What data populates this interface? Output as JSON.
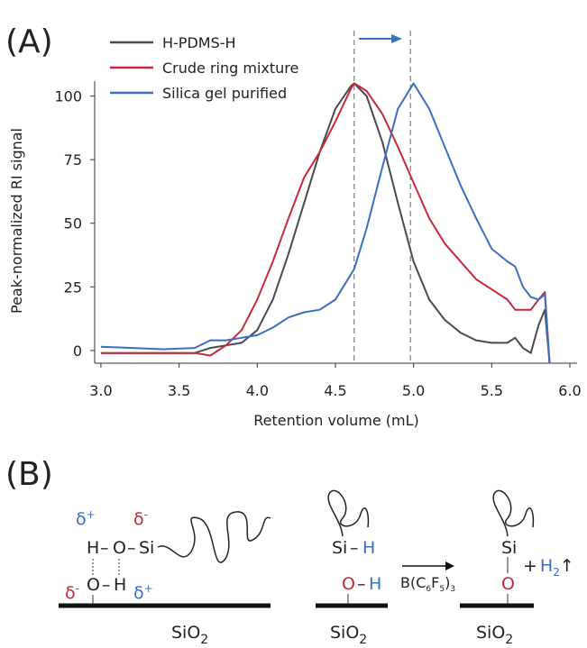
{
  "panels": [
    "(A)",
    "(B)"
  ],
  "chart_data": {
    "type": "line",
    "xlabel": "Retention volume (mL)",
    "ylabel": "Peak-normalized RI signal",
    "x": [
      3.0,
      3.2,
      3.4,
      3.6,
      3.7,
      3.8,
      3.9,
      4.0,
      4.1,
      4.2,
      4.3,
      4.4,
      4.5,
      4.6,
      4.62,
      4.7,
      4.8,
      4.9,
      5.0,
      5.1,
      5.2,
      5.3,
      5.4,
      5.5,
      5.6,
      5.65,
      5.7,
      5.75,
      5.8,
      5.84,
      5.87
    ],
    "series": [
      {
        "name": "H-PDMS-H",
        "color": "#4a4a4a",
        "values": [
          -1,
          -1,
          -1,
          -1,
          1,
          2,
          3,
          8,
          20,
          38,
          58,
          78,
          95,
          104,
          105,
          100,
          82,
          58,
          35,
          20,
          12,
          7,
          4,
          3,
          3,
          5,
          1,
          -1,
          10,
          16,
          -5
        ]
      },
      {
        "name": "Crude ring mixture",
        "color": "#c8283a",
        "values": [
          -1,
          -1,
          -1,
          -1,
          -2,
          2,
          8,
          20,
          35,
          52,
          68,
          78,
          90,
          103,
          105,
          102,
          93,
          80,
          66,
          52,
          42,
          35,
          28,
          24,
          20,
          16,
          16,
          16,
          20,
          23,
          -5
        ]
      },
      {
        "name": "Silica gel purified",
        "color": "#3a6fc0",
        "values": [
          1.5,
          1,
          0.5,
          1,
          4,
          4,
          5,
          6,
          9,
          13,
          15,
          16,
          20,
          30,
          32,
          48,
          72,
          95,
          105,
          95,
          80,
          65,
          52,
          40,
          35,
          33,
          25,
          21,
          20,
          22,
          -5
        ]
      }
    ],
    "vlines": [
      4.62,
      4.98
    ],
    "xlim": [
      2.96,
      6.0
    ],
    "xticks": [
      {
        "value": 3,
        "label": "3.0"
      },
      3.5,
      {
        "value": 4,
        "label": "4.0"
      },
      4.5,
      {
        "value": 5,
        "label": "5.0"
      },
      5.5,
      {
        "value": 6,
        "label": "6.0"
      }
    ],
    "ylim": [
      -5,
      108
    ],
    "yticks": [
      0,
      25,
      50,
      75,
      100
    ],
    "legend": "upper left"
  },
  "diagram": {
    "left": {
      "delta": "δ",
      "plus": "+",
      "minus": "-",
      "h1": "H",
      "o1": "O",
      "si": "Si",
      "o2": "O",
      "h2": "H",
      "dash": "–",
      "surface": "SiO",
      "sub": "2"
    },
    "middle": {
      "si": "Si",
      "h": "H",
      "o": "O",
      "oh_h": "H",
      "dash": "–",
      "surface": "SiO",
      "sub": "2"
    },
    "catalyst": [
      "B(C",
      "6",
      "F",
      "5",
      ")",
      "3"
    ],
    "right": {
      "si": "Si",
      "o": "O",
      "plus": "+",
      "h2": "H",
      "sub2": "2",
      "up": "↑",
      "surface": "SiO",
      "sub": "2"
    }
  }
}
